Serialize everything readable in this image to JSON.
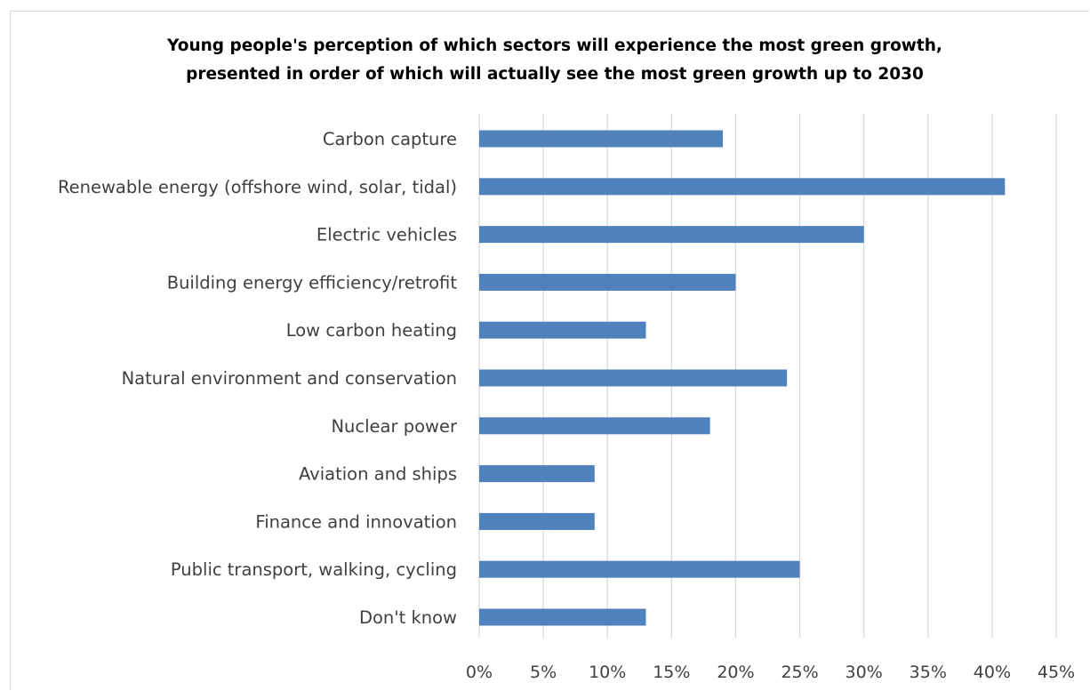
{
  "chart_data": {
    "type": "bar",
    "orientation": "horizontal",
    "title": "Young people's perception of which sectors will experience the most green growth,",
    "subtitle": "presented in order of which will actually see the most green growth up to 2030",
    "categories": [
      "Carbon capture",
      "Renewable energy (offshore wind, solar, tidal)",
      "Electric vehicles",
      "Building energy efficiency/retrofit",
      "Low carbon heating",
      "Natural environment and conservation",
      "Nuclear power",
      "Aviation and ships",
      "Finance and innovation",
      "Public transport, walking, cycling",
      "Don't know"
    ],
    "values": [
      19,
      41,
      30,
      20,
      13,
      24,
      18,
      9,
      9,
      25,
      13
    ],
    "xlim": [
      0,
      45
    ],
    "xticks": [
      "0%",
      "5%",
      "10%",
      "15%",
      "20%",
      "25%",
      "30%",
      "35%",
      "40%",
      "45%"
    ],
    "grid": "vertical",
    "legend": "none",
    "xlabel": "",
    "ylabel": "",
    "bar_color": "#4f81bd"
  }
}
